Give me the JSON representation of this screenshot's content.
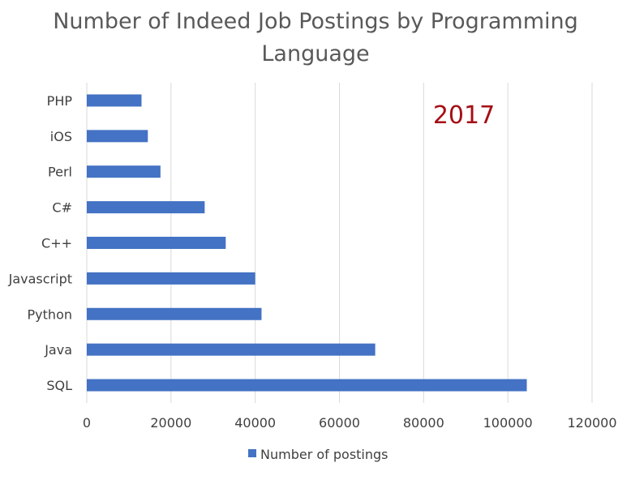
{
  "chart_data": {
    "type": "bar",
    "orientation": "horizontal",
    "title": "Number of Indeed Job Postings by Programming Language",
    "title_lines": [
      "Number of Indeed Job Postings by Programming",
      "Language"
    ],
    "annotation": "2017",
    "categories": [
      "PHP",
      "iOS",
      "Perl",
      "C#",
      "C++",
      "Javascript",
      "Python",
      "Java",
      "SQL"
    ],
    "series": [
      {
        "name": "Number of postings",
        "values": [
          13000,
          14500,
          17500,
          28000,
          33000,
          40000,
          41500,
          68500,
          104500
        ]
      }
    ],
    "xlim": [
      0,
      120000
    ],
    "x_ticks": [
      0,
      20000,
      40000,
      60000,
      80000,
      100000,
      120000
    ],
    "x_tick_labels": [
      "0",
      "20000",
      "40000",
      "60000",
      "80000",
      "100000",
      "120000"
    ],
    "grid": "vertical major gridlines",
    "legend_position": "bottom",
    "colors": {
      "bar": "#4472C4",
      "grid": "#D9D9D9",
      "title": "#595959",
      "label": "#404040",
      "annotation": "#A50F15"
    }
  }
}
